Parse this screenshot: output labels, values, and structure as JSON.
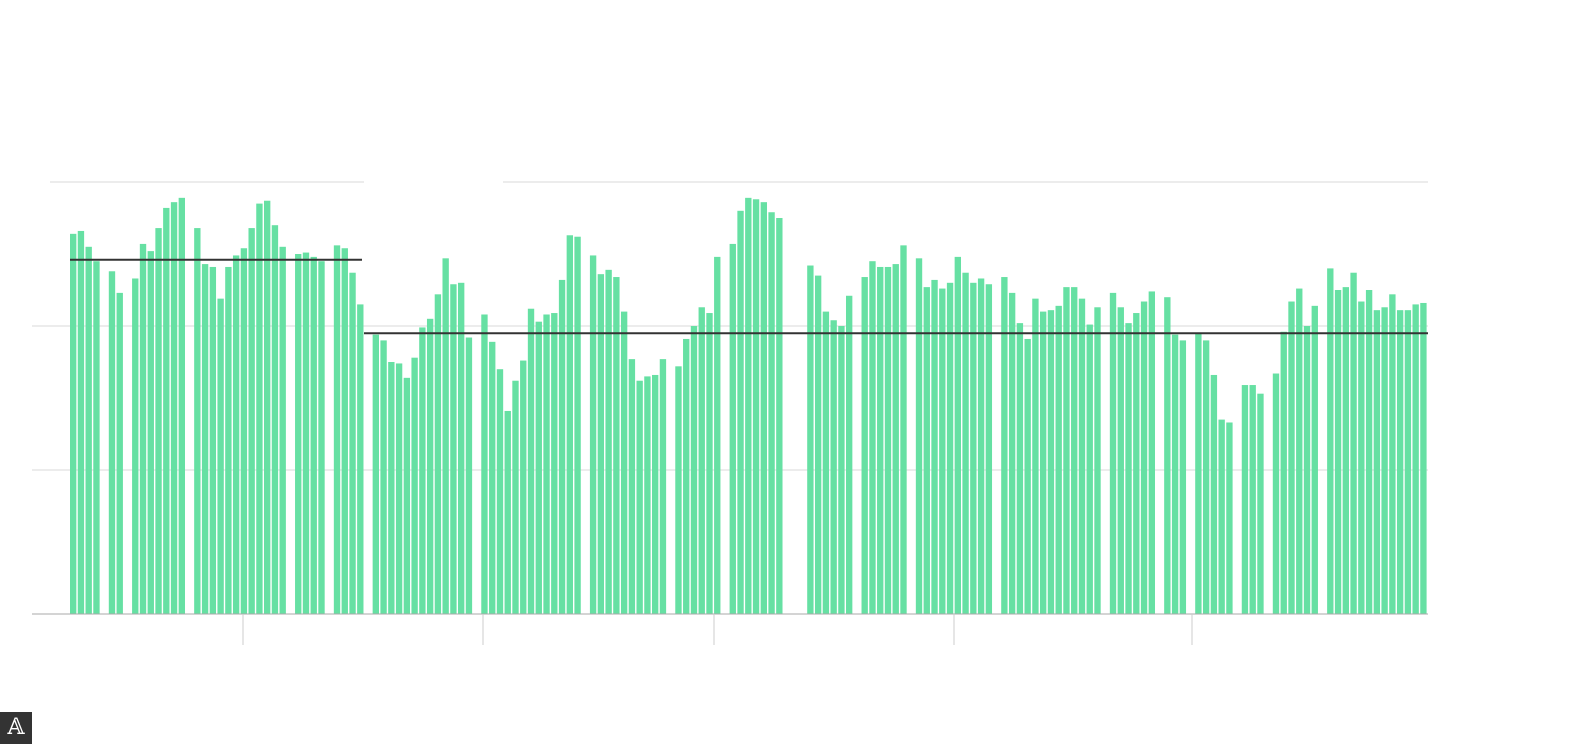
{
  "chart_data": {
    "type": "bar",
    "title": "",
    "xlabel": "",
    "ylabel": "",
    "ylim": [
      0,
      300
    ],
    "grid": true,
    "gridlines": [
      100,
      200,
      300
    ],
    "bar_color": "#66e0a3",
    "reference_color": "#333333",
    "values": [
      264,
      266,
      255,
      245,
      null,
      238,
      223,
      null,
      233,
      257,
      252,
      268,
      282,
      286,
      289,
      null,
      268,
      243,
      241,
      219,
      241,
      249,
      254,
      268,
      285,
      287,
      270,
      255,
      null,
      250,
      251,
      248,
      245,
      null,
      256,
      254,
      237,
      215,
      null,
      194,
      190,
      175,
      174,
      164,
      178,
      199,
      205,
      222,
      247,
      229,
      230,
      192,
      null,
      208,
      189,
      170,
      141,
      162,
      176,
      212,
      203,
      208,
      209,
      232,
      263,
      262,
      null,
      249,
      236,
      239,
      234,
      210,
      177,
      162,
      165,
      166,
      177,
      null,
      172,
      191,
      200,
      213,
      209,
      248,
      null,
      257,
      280,
      289,
      288,
      286,
      279,
      275,
      null,
      null,
      null,
      242,
      235,
      210,
      204,
      200,
      221,
      null,
      234,
      245,
      241,
      241,
      243,
      256,
      null,
      247,
      227,
      232,
      226,
      230,
      248,
      237,
      230,
      233,
      229,
      null,
      234,
      223,
      202,
      191,
      219,
      210,
      211,
      214,
      227,
      227,
      219,
      201,
      213,
      null,
      223,
      213,
      202,
      209,
      217,
      224,
      null,
      220,
      194,
      190,
      null,
      195,
      190,
      166,
      135,
      133,
      null,
      159,
      159,
      153,
      null,
      167,
      196,
      217,
      226,
      200,
      214,
      null,
      240,
      225,
      227,
      237,
      217,
      225,
      211,
      213,
      222,
      211,
      211,
      215,
      216
    ],
    "reference_lines": [
      {
        "value": 246,
        "span": "left"
      },
      {
        "value": 195,
        "span": "right"
      }
    ]
  },
  "watermark": {
    "label": "𝔸"
  }
}
